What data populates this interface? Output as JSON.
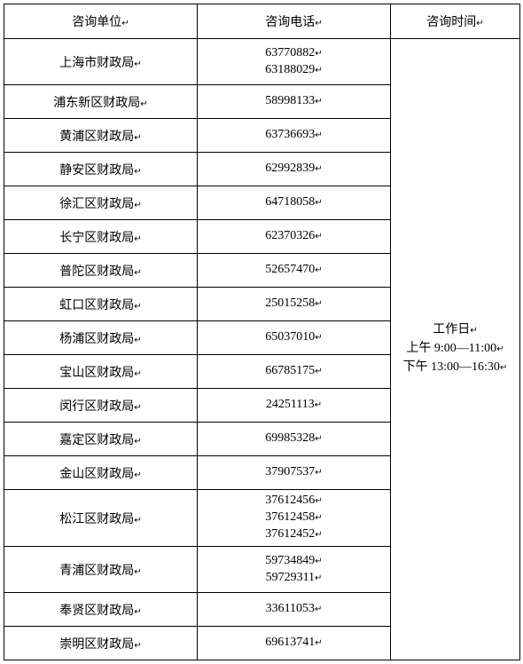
{
  "headers": {
    "unit": "咨询单位",
    "phone": "咨询电话",
    "time": "咨询时间"
  },
  "marker": "↵",
  "time_cell": {
    "line1": "工作日",
    "line2": "上午 9:00—11:00",
    "line3": "下午 13:00—16:30"
  },
  "rows": [
    {
      "unit": "上海市财政局",
      "phones": [
        "63770882",
        "63188029"
      ],
      "h": "row-2"
    },
    {
      "unit": "浦东新区财政局",
      "phones": [
        "58998133"
      ],
      "h": "row-1"
    },
    {
      "unit": "黄浦区财政局",
      "phones": [
        "63736693"
      ],
      "h": "row-1"
    },
    {
      "unit": "静安区财政局",
      "phones": [
        "62992839"
      ],
      "h": "row-1"
    },
    {
      "unit": "徐汇区财政局",
      "phones": [
        "64718058"
      ],
      "h": "row-1"
    },
    {
      "unit": "长宁区财政局",
      "phones": [
        "62370326"
      ],
      "h": "row-1"
    },
    {
      "unit": "普陀区财政局",
      "phones": [
        "52657470"
      ],
      "h": "row-1"
    },
    {
      "unit": "虹口区财政局",
      "phones": [
        "25015258"
      ],
      "h": "row-1"
    },
    {
      "unit": "杨浦区财政局",
      "phones": [
        "65037010"
      ],
      "h": "row-1"
    },
    {
      "unit": "宝山区财政局",
      "phones": [
        "66785175"
      ],
      "h": "row-1"
    },
    {
      "unit": "闵行区财政局",
      "phones": [
        "24251113"
      ],
      "h": "row-1"
    },
    {
      "unit": "嘉定区财政局",
      "phones": [
        "69985328"
      ],
      "h": "row-1"
    },
    {
      "unit": "金山区财政局",
      "phones": [
        "37907537"
      ],
      "h": "row-1"
    },
    {
      "unit": "松江区财政局",
      "phones": [
        "37612456",
        "37612458",
        "37612452"
      ],
      "h": "row-3"
    },
    {
      "unit": "青浦区财政局",
      "phones": [
        "59734849",
        "59729311"
      ],
      "h": "row-2"
    },
    {
      "unit": "奉贤区财政局",
      "phones": [
        "33611053"
      ],
      "h": "row-1"
    },
    {
      "unit": "崇明区财政局",
      "phones": [
        "69613741"
      ],
      "h": "row-1"
    }
  ]
}
